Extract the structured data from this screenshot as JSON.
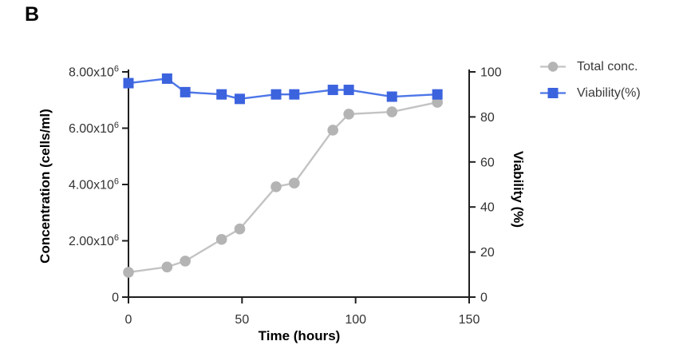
{
  "panel_label": "B",
  "colors": {
    "conc_marker": "#b4b4b4",
    "conc_line": "#c3c3c3",
    "viability_marker": "#3c63de",
    "viability_line": "#4d76e8",
    "axis": "#1f1f1f",
    "tick_text": "#333333",
    "legend_text": "#3a3a3a"
  },
  "chart_data": {
    "type": "line",
    "title": "",
    "xlabel": "Time (hours)",
    "ylabel_left": "Concentration (cells/ml)",
    "ylabel_right": "Viability (%)",
    "xlim": [
      0,
      150
    ],
    "ylim_left": [
      0,
      8000000
    ],
    "ylim_right": [
      0,
      100
    ],
    "grid": false,
    "legend_position": "top-right",
    "x_ticks": {
      "values": [
        0,
        50,
        100,
        150
      ],
      "labels": [
        "0",
        "50",
        "100",
        "150"
      ]
    },
    "y_ticks_left": {
      "values": [
        0,
        2000000,
        4000000,
        6000000,
        8000000
      ],
      "labels": [
        "0",
        "2.00x10^6",
        "4.00x10^6",
        "6.00x10^6",
        "8.00x10^6"
      ]
    },
    "y_ticks_right": {
      "values": [
        0,
        20,
        40,
        60,
        80,
        100
      ],
      "labels": [
        "0",
        "20",
        "40",
        "60",
        "80",
        "100"
      ]
    },
    "x": [
      0,
      17,
      25,
      41,
      49,
      65,
      73,
      90,
      97,
      116,
      136
    ],
    "series": [
      {
        "name": "Total conc.",
        "axis": "left",
        "marker": "circle",
        "values": [
          880000,
          1070000,
          1280000,
          2050000,
          2420000,
          3920000,
          4050000,
          5930000,
          6500000,
          6580000,
          6920000
        ]
      },
      {
        "name": "Viability(%)",
        "axis": "right",
        "marker": "square",
        "values": [
          95,
          97,
          91,
          90,
          88,
          90,
          90,
          92,
          92,
          89,
          90
        ]
      }
    ]
  }
}
